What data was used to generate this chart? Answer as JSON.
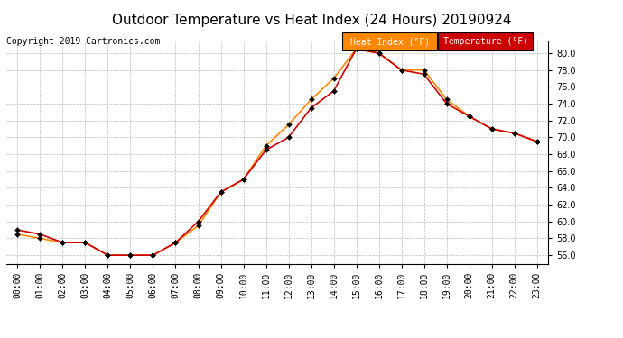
{
  "title": "Outdoor Temperature vs Heat Index (24 Hours) 20190924",
  "copyright": "Copyright 2019 Cartronics.com",
  "ylim": [
    55.0,
    81.5
  ],
  "yticks": [
    56.0,
    58.0,
    60.0,
    62.0,
    64.0,
    66.0,
    68.0,
    70.0,
    72.0,
    74.0,
    76.0,
    78.0,
    80.0
  ],
  "hours": [
    "00:00",
    "01:00",
    "02:00",
    "03:00",
    "04:00",
    "05:00",
    "06:00",
    "07:00",
    "08:00",
    "09:00",
    "10:00",
    "11:00",
    "12:00",
    "13:00",
    "14:00",
    "15:00",
    "16:00",
    "17:00",
    "18:00",
    "19:00",
    "20:00",
    "21:00",
    "22:00",
    "23:00"
  ],
  "temperature": [
    59.0,
    58.5,
    57.5,
    57.5,
    56.0,
    56.0,
    56.0,
    57.5,
    60.0,
    63.5,
    65.0,
    68.5,
    70.0,
    73.5,
    75.5,
    80.5,
    80.0,
    78.0,
    77.5,
    74.0,
    72.5,
    71.0,
    70.5,
    69.5
  ],
  "heat_index": [
    58.5,
    58.0,
    57.5,
    57.5,
    56.0,
    56.0,
    56.0,
    57.5,
    59.5,
    63.5,
    65.0,
    69.0,
    71.5,
    74.5,
    77.0,
    80.5,
    80.0,
    78.0,
    78.0,
    74.5,
    72.5,
    71.0,
    70.5,
    69.5
  ],
  "temp_color": "#cc0000",
  "heat_index_color": "#ff8800",
  "bg_color": "#ffffff",
  "grid_color": "#bbbbbb",
  "title_fontsize": 11,
  "copyright_fontsize": 7,
  "legend_heat_index_bg": "#ff8800",
  "legend_temp_bg": "#cc0000",
  "tick_fontsize": 7,
  "ytick_fontsize": 7
}
